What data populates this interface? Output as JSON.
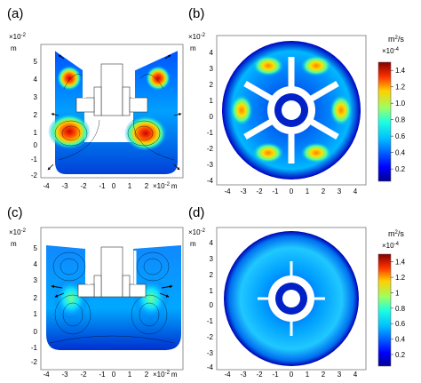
{
  "panels": [
    {
      "label": "(a)",
      "exponent": "×10",
      "exp_power": "-2",
      "unit": "m",
      "x_ticks": [
        "-4",
        "-3",
        "-2",
        "-1",
        "0",
        "1",
        "2"
      ],
      "y_ticks": [
        "5",
        "4",
        "3",
        "2",
        "1",
        "0",
        "-1",
        "-2"
      ]
    },
    {
      "label": "(b)",
      "exponent": "×10",
      "exp_power": "-2",
      "unit": "m",
      "x_ticks": [
        "-4",
        "-3",
        "-2",
        "-1",
        "0",
        "1",
        "2",
        "3",
        "4"
      ],
      "y_ticks": [
        "4",
        "3",
        "2",
        "1",
        "0",
        "-1",
        "-2",
        "-3",
        "-4"
      ]
    },
    {
      "label": "(c)",
      "exponent": "×10",
      "exp_power": "-2",
      "unit": "m",
      "x_ticks": [
        "-4",
        "-3",
        "-2",
        "-1",
        "0",
        "1",
        "2"
      ],
      "y_ticks": [
        "5",
        "4",
        "3",
        "2",
        "1",
        "0",
        "-1",
        "-2"
      ]
    },
    {
      "label": "(d)",
      "exponent": "×10",
      "exp_power": "-2",
      "unit": "m",
      "x_ticks": [
        "-4",
        "-3",
        "-2",
        "-1",
        "0",
        "1",
        "2",
        "3",
        "4"
      ],
      "y_ticks": [
        "4",
        "3",
        "2",
        "1",
        "0",
        "-1",
        "-2",
        "-3",
        "-4"
      ]
    }
  ],
  "colorbars": [
    {
      "unit_base": "m",
      "unit_power": "2",
      "unit_suffix": "/s",
      "multiplier": "×10",
      "multiplier_power": "-4",
      "ticks": [
        "1.4",
        "1.2",
        "1.0",
        "0.8",
        "0.6",
        "0.4",
        "0.2"
      ],
      "tick_values": [
        1.4,
        1.2,
        1.0,
        0.8,
        0.6,
        0.4,
        0.2
      ],
      "range": [
        0.05,
        1.5
      ]
    },
    {
      "unit_base": "m",
      "unit_power": "2",
      "unit_suffix": "/s",
      "multiplier": "×10",
      "multiplier_power": "-4",
      "ticks": [
        "1.4",
        "1.2",
        "1",
        "0.8",
        "0.6",
        "0.4",
        "0.2"
      ],
      "tick_values": [
        1.4,
        1.2,
        1.0,
        0.8,
        0.6,
        0.4,
        0.2
      ],
      "range": [
        0.05,
        1.5
      ]
    }
  ],
  "colors": {
    "jet_low": "#00008f",
    "jet_mid": "#10e0ff",
    "jet_high": "#800000",
    "wall": "#ffffff"
  }
}
